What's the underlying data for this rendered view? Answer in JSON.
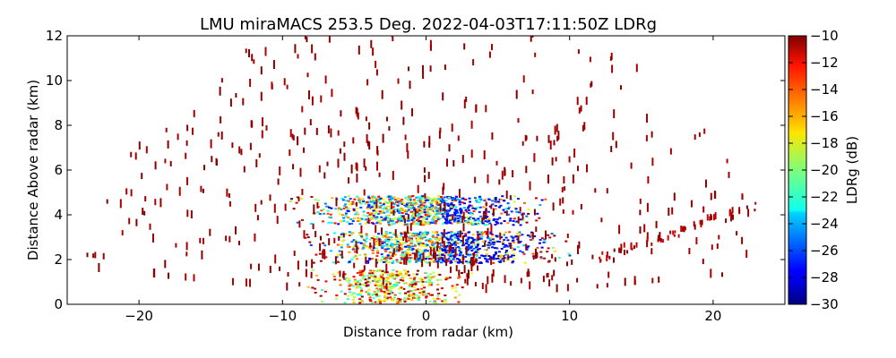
{
  "chart_data": {
    "type": "heatmap",
    "title": "LMU miraMACS 253.5 Deg. 2022-04-03T17:11:50Z  LDRg",
    "xlabel": "Distance from radar (km)",
    "ylabel": "Distance Above radar  (km)",
    "xlim": [
      -25,
      25
    ],
    "ylim": [
      0,
      12
    ],
    "xticks": [
      -20,
      -10,
      0,
      10,
      20
    ],
    "xtick_labels": [
      "−20",
      "−10",
      "0",
      "10",
      "20"
    ],
    "yticks": [
      0,
      2,
      4,
      6,
      8,
      10,
      12
    ],
    "ytick_labels": [
      "0",
      "2",
      "4",
      "6",
      "8",
      "10",
      "12"
    ],
    "grid": false,
    "colorbar": {
      "label": "LDRg (dB)",
      "range": [
        -30,
        -10
      ],
      "ticks": [
        -30,
        -28,
        -26,
        -24,
        -22,
        -20,
        -18,
        -16,
        -14,
        -12,
        -10
      ],
      "tick_labels": [
        "−30",
        "−28",
        "−26",
        "−24",
        "−22",
        "−20",
        "−18",
        "−16",
        "−14",
        "−12",
        "−10"
      ],
      "colormap": "jet"
    },
    "features": [
      {
        "name": "cloud-layer-upper",
        "x_range": [
          -10,
          11
        ],
        "height_range": [
          3.5,
          4.8
        ],
        "ldr_range": [
          -28,
          -12
        ]
      },
      {
        "name": "cloud-layer-lower",
        "x_range": [
          -9,
          12
        ],
        "height_range": [
          1.8,
          3.2
        ],
        "ldr_range": [
          -28,
          -12
        ]
      },
      {
        "name": "near-ground-echoes",
        "x_range": [
          -8,
          5
        ],
        "height_range": [
          0,
          1.5
        ],
        "ldr_range": [
          -22,
          -10
        ]
      },
      {
        "name": "elevated-line-returns",
        "x_range": [
          12,
          23
        ],
        "height_range": [
          2.0,
          4.3
        ],
        "ldr_range": [
          -12,
          -10
        ]
      },
      {
        "name": "sparse-clutter",
        "x_range": [
          -24,
          24
        ],
        "height_range": [
          0.5,
          12
        ],
        "ldr_range": [
          -11,
          -10
        ]
      }
    ]
  }
}
